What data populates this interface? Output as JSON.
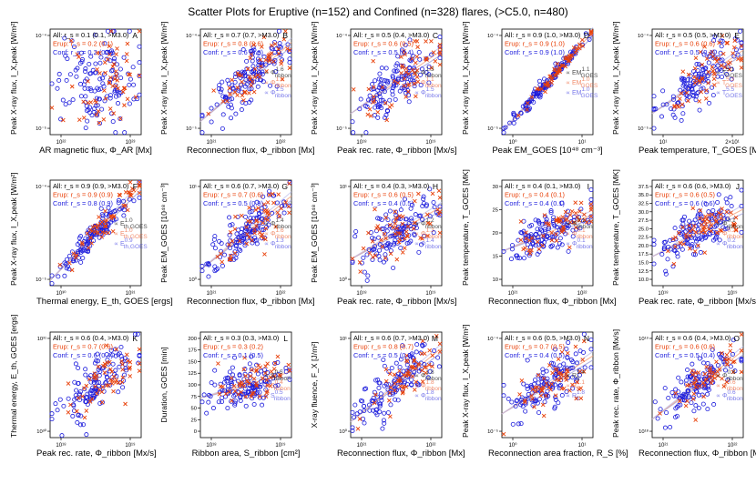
{
  "title": "Scatter Plots for Eruptive (n=152) and Confined (n=328) flares, (>C5.0, n=480)",
  "colors": {
    "all": "#000000",
    "erup": "#e8410a",
    "conf": "#1c1cdc",
    "fit": "#8c8cd8"
  },
  "chart_data": [
    {
      "id": "A",
      "type": "scatter",
      "xlabel": "AR magnetic flux, Φ_AR [Mx]",
      "ylabel": "Peak X-ray flux, I_X,peak [W/m²]",
      "stats": [
        "All: r_s = 0.1 (0.1, >M3.0)",
        "Erup: r_s = 0.2 (0.1)",
        "Conf: r_s = 0.2 (0.5)"
      ],
      "fits": [],
      "xticks": [
        "10²²",
        "10²³"
      ],
      "yticks": [
        "10⁻⁴",
        "10⁻⁵"
      ],
      "trend": 0.1,
      "spread": 0.45
    },
    {
      "id": "B",
      "type": "scatter",
      "xlabel": "Reconnection flux, Φ_ribbon [Mx]",
      "ylabel": "Peak X-ray flux, I_X,peak [W/m²]",
      "stats": [
        "All: r_s = 0.7 (0.7, >M3.0)",
        "Erup: r_s = 0.8 (0.6)",
        "Conf: r_s = 0.6 (0.8)"
      ],
      "fits": [
        "∝ Φ_ribbon^1.6",
        "∝ Φ_ribbon^1.6",
        "∝ Φ_ribbon^1.5"
      ],
      "xticks": [
        "10²¹",
        "10²²"
      ],
      "yticks": [
        "10⁻⁴",
        "10⁻⁵"
      ],
      "trend": 0.75,
      "spread": 0.22
    },
    {
      "id": "C",
      "type": "scatter",
      "xlabel": "Peak rec. rate, Φ_ribbon [Mx/s]",
      "ylabel": "Peak X-ray flux, I_X,peak [W/m²]",
      "stats": [
        "All: r_s = 0.5 (0.4, >M3.0)",
        "Erup: r_s = 0.6 (0.5)",
        "Conf: r_s = 0.5 (0.4)"
      ],
      "fits": [
        "∝ Φ_ribbon^1.3",
        "∝ Φ_ribbon^1.1",
        "∝ Φ_ribbon^1.5"
      ],
      "xticks": [
        "10¹⁸",
        "10¹⁹"
      ],
      "yticks": [
        "10⁻⁴",
        "10⁻⁵"
      ],
      "trend": 0.6,
      "spread": 0.25
    },
    {
      "id": "D",
      "type": "scatter",
      "xlabel": "Peak EM_GOES [10⁴⁸ cm⁻³]",
      "ylabel": "Peak X-ray flux, I_X,peak [W/m²]",
      "stats": [
        "All: r_s = 0.9 (1.0, >M3.0)",
        "Erup: r_s = 0.9 (1.0)",
        "Conf: r_s = 0.9 (1.0)"
      ],
      "fits": [
        "∝ EM_GOES^1.1",
        "∝ EM_GOES^1.0",
        "∝ EM_GOES^1.0"
      ],
      "xticks": [
        "10⁰",
        "10¹"
      ],
      "yticks": [
        "10⁻⁴",
        "10⁻⁵"
      ],
      "trend": 0.95,
      "spread": 0.06
    },
    {
      "id": "E",
      "type": "scatter",
      "xlabel": "Peak temperature, T_GOES [MK]",
      "ylabel": "Peak X-ray flux, I_X,peak [W/m²]",
      "stats": [
        "All: r_s = 0.5 (0.5, >M3.0)",
        "Erup: r_s = 0.6 (0.6)",
        "Conf: r_s = 0.5 (0.4)"
      ],
      "fits": [
        "∝ T_GOES^5.1",
        "∝ T_GOES^5.3",
        "∝ T_GOES^5.5"
      ],
      "xticks": [
        "10¹",
        "2×10¹"
      ],
      "yticks": [
        "10⁻⁴",
        "10⁻⁵"
      ],
      "trend": 0.6,
      "spread": 0.25
    },
    {
      "id": "F",
      "type": "scatter",
      "xlabel": "Thermal energy, E_th, GOES [ergs]",
      "ylabel": "Peak X-ray flux, I_X,peak [W/m²]",
      "stats": [
        "All: r_s = 0.9 (0.9, >M3.0)",
        "Erup: r_s = 0.9 (0.9)",
        "Conf: r_s = 0.8 (0.9)"
      ],
      "fits": [
        "∝ E_th,GOES^1.0",
        "∝ E_th,GOES^1.0",
        "∝ E_th,GOES^0.9"
      ],
      "xticks": [
        "10³⁰",
        "10³¹"
      ],
      "yticks": [
        "10⁻⁴",
        "10⁻⁵"
      ],
      "trend": 0.9,
      "spread": 0.12
    },
    {
      "id": "G",
      "type": "scatter",
      "xlabel": "Reconnection flux, Φ_ribbon [Mx]",
      "ylabel": "Peak EM_GOES [10⁴⁸ cm⁻³]",
      "stats": [
        "All: r_s = 0.6 (0.7, >M3.0)",
        "Erup: r_s = 0.7 (0.6)",
        "Conf: r_s = 0.5 (0.9)"
      ],
      "fits": [
        "∝ Φ_ribbon^1.4",
        "∝ Φ_ribbon^1.6",
        "∝ Φ_ribbon^1.3"
      ],
      "xticks": [
        "10²¹",
        "10²²"
      ],
      "yticks": [
        "10¹",
        "10⁰"
      ],
      "trend": 0.7,
      "spread": 0.23
    },
    {
      "id": "H",
      "type": "scatter",
      "xlabel": "Peak rec. rate, Φ_ribbon [Mx/s]",
      "ylabel": "Peak EM_GOES [10⁴⁸ cm⁻³]",
      "stats": [
        "All: r_s = 0.4 (0.3, >M3.0)",
        "Erup: r_s = 0.6 (0.5)",
        "Conf: r_s = 0.4 (0.5)"
      ],
      "fits": [
        "∝ Φ_ribbon^1.2",
        "∝ Φ_ribbon^1.3",
        "∝ Φ_ribbon^1.4"
      ],
      "xticks": [
        "10¹⁸",
        "10¹⁹"
      ],
      "yticks": [
        "10¹",
        "10⁰"
      ],
      "trend": 0.5,
      "spread": 0.25
    },
    {
      "id": "I",
      "type": "scatter",
      "xlabel": "Reconnection flux, Φ_ribbon [Mx]",
      "ylabel": "Peak temperature, T_GOES [MK]",
      "stats": [
        "All: r_s = 0.4 (0.1, >M3.0)",
        "Erup: r_s = 0.4 (0.1)",
        "Conf: r_s = 0.4 (0.1)"
      ],
      "fits": [
        "∝ Φ_ribbon^0.1",
        "∝ Φ_ribbon^0.1",
        "∝ Φ_ribbon^0.1"
      ],
      "xticks": [
        "10²¹",
        "10²²"
      ],
      "yticks": [
        "30",
        "25",
        "20",
        "15",
        "10"
      ],
      "trend": 0.35,
      "spread": 0.2
    },
    {
      "id": "J",
      "type": "scatter",
      "xlabel": "Peak rec. rate, Φ_ribbon [Mx/s]",
      "ylabel": "Peak temperature, T_GOES [MK]",
      "stats": [
        "All: r_s = 0.6 (0.6, >M3.0)",
        "Erup: r_s = 0.6 (0.5)",
        "Conf: r_s = 0.6 (0.6)"
      ],
      "fits": [
        "∝ Φ_ribbon^0.1",
        "∝ Φ_ribbon^0.2",
        "∝ Φ_ribbon^0.2"
      ],
      "xticks": [
        "10¹⁸",
        "10¹⁹"
      ],
      "yticks": [
        "37.5",
        "35.0",
        "32.5",
        "30.0",
        "27.5",
        "25.0",
        "22.5",
        "20.0",
        "17.5",
        "15.0",
        "12.5",
        "10.0"
      ],
      "trend": 0.45,
      "spread": 0.2
    },
    {
      "id": "K",
      "type": "scatter",
      "xlabel": "Peak rec. rate, Φ_ribbon [Mx/s]",
      "ylabel": "Thermal energy, E_th, GOES [ergs]",
      "stats": [
        "All: r_s = 0.6 (0.4, >M3.0)",
        "Erup: r_s = 0.7 (0.6)",
        "Conf: r_s = 0.6 (0.4)"
      ],
      "fits": [],
      "xticks": [
        "10¹⁸",
        "10¹⁹"
      ],
      "yticks": [
        "10³¹",
        "10³⁰"
      ],
      "trend": 0.6,
      "spread": 0.25
    },
    {
      "id": "L",
      "type": "scatter",
      "xlabel": "Ribbon area, S_ribbon [cm²]",
      "ylabel": "Duration, GOES [min]",
      "stats": [
        "All: r_s = 0.3 (0.3, >M3.0)",
        "Erup: r_s = 0.3 (0.2)",
        "Conf: r_s = 0.1 (0.5)"
      ],
      "fits": [
        "∝ S_ribbon^0.5",
        "∝ S_ribbon^0.4",
        "∝ S_ribbon^0.5"
      ],
      "xticks": [
        "10¹⁸",
        "10¹⁹"
      ],
      "yticks": [
        "200",
        "175",
        "150",
        "125",
        "100",
        "75",
        "50",
        "25",
        "0"
      ],
      "trend": 0.25,
      "spread": 0.2
    },
    {
      "id": "M",
      "type": "scatter",
      "xlabel": "Reconnection flux, Φ_ribbon [Mx]",
      "ylabel": "X-ray fluence, F_X [J/m²]",
      "stats": [
        "All: r_s = 0.6 (0.7, >M3.0)",
        "Erup: r_s = 0.8 (0.7)",
        "Conf: r_s = 0.5 (0.8)"
      ],
      "fits": [
        "∝ Φ_ribbon^1.8",
        "∝ Φ_ribbon^1.8",
        "∝ Φ_ribbon^1.8"
      ],
      "xticks": [
        "10²¹",
        "10²²"
      ],
      "yticks": [
        "10¹",
        "10⁰"
      ],
      "trend": 0.7,
      "spread": 0.22
    },
    {
      "id": "N",
      "type": "scatter",
      "xlabel": "Reconnection area fraction, R_S [%]",
      "ylabel": "Peak X-ray flux, I_X,peak [W/m²]",
      "stats": [
        "All: r_s = 0.6 (0.5, >M3.0)",
        "Erup: r_s = 0.7 (0.5)",
        "Conf: r_s = 0.4 (0.5)"
      ],
      "fits": [
        "∝ R_S^1.4",
        "∝ R_S^1.1",
        "∝ R_S^1.8"
      ],
      "xticks": [
        "10⁰",
        "10¹"
      ],
      "yticks": [
        "10⁻⁴",
        "10⁻⁵"
      ],
      "trend": 0.55,
      "spread": 0.25
    },
    {
      "id": "O",
      "type": "scatter",
      "xlabel": "Reconnection flux, Φ_ribbon [Mx]",
      "ylabel": "Peak rec. rate, Φ_ribbon [Mx/s]",
      "stats": [
        "All: r_s = 0.6 (0.4, >M3.0)",
        "Erup: r_s = 0.6 (0.6)",
        "Conf: r_s = 0.5 (0.4)"
      ],
      "fits": [
        "∝ Φ_ribbon^0.6",
        "∝ Φ_ribbon^0.6",
        "∝ Φ_ribbon^0.6"
      ],
      "xticks": [
        "10²¹",
        "10²²"
      ],
      "yticks": [
        "10¹⁹",
        "10¹⁸"
      ],
      "trend": 0.65,
      "spread": 0.2
    }
  ]
}
